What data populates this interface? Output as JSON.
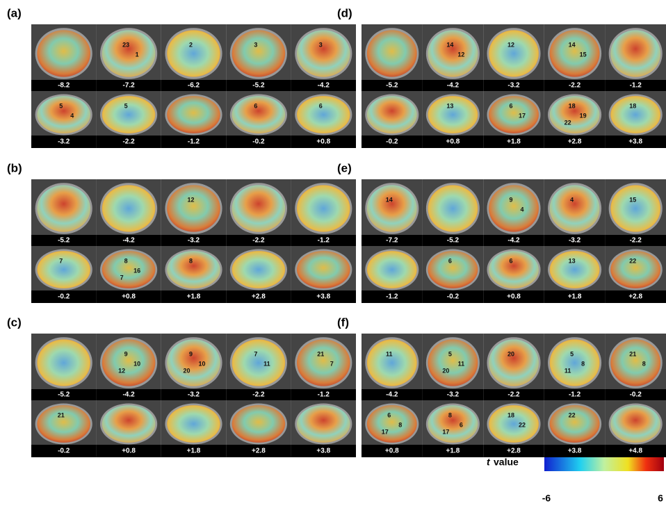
{
  "panels": [
    {
      "label": "(a)",
      "rows": [
        {
          "slices": [
            {
              "label": "-8.2",
              "regions": []
            },
            {
              "label": "-7.2",
              "regions": [
                "23",
                "1"
              ]
            },
            {
              "label": "-6.2",
              "regions": [
                "2"
              ]
            },
            {
              "label": "-5.2",
              "regions": [
                "3"
              ]
            },
            {
              "label": "-4.2",
              "regions": [
                "3"
              ]
            }
          ]
        },
        {
          "slices": [
            {
              "label": "-3.2",
              "regions": [
                "5",
                "4"
              ]
            },
            {
              "label": "-2.2",
              "regions": [
                "5"
              ]
            },
            {
              "label": "-1.2",
              "regions": []
            },
            {
              "label": "-0.2",
              "regions": [
                "6"
              ]
            },
            {
              "label": "+0.8",
              "regions": [
                "6"
              ]
            }
          ]
        }
      ]
    },
    {
      "label": "(b)",
      "rows": [
        {
          "slices": [
            {
              "label": "-5.2",
              "regions": []
            },
            {
              "label": "-4.2",
              "regions": []
            },
            {
              "label": "-3.2",
              "regions": [
                "12"
              ]
            },
            {
              "label": "-2.2",
              "regions": []
            },
            {
              "label": "-1.2",
              "regions": []
            }
          ]
        },
        {
          "slices": [
            {
              "label": "-0.2",
              "regions": [
                "7"
              ]
            },
            {
              "label": "+0.8",
              "regions": [
                "8",
                "16",
                "7"
              ]
            },
            {
              "label": "+1.8",
              "regions": [
                "8"
              ]
            },
            {
              "label": "+2.8",
              "regions": []
            },
            {
              "label": "+3.8",
              "regions": []
            }
          ]
        }
      ]
    },
    {
      "label": "(c)",
      "rows": [
        {
          "slices": [
            {
              "label": "-5.2",
              "regions": []
            },
            {
              "label": "-4.2",
              "regions": [
                "9",
                "10",
                "12"
              ]
            },
            {
              "label": "-3.2",
              "regions": [
                "9",
                "10",
                "20"
              ]
            },
            {
              "label": "-2.2",
              "regions": [
                "7",
                "11"
              ]
            },
            {
              "label": "-1.2",
              "regions": [
                "21",
                "7"
              ]
            }
          ]
        },
        {
          "slices": [
            {
              "label": "-0.2",
              "regions": [
                "21"
              ]
            },
            {
              "label": "+0.8",
              "regions": []
            },
            {
              "label": "+1.8",
              "regions": []
            },
            {
              "label": "+2.8",
              "regions": []
            },
            {
              "label": "+3.8",
              "regions": []
            }
          ]
        }
      ]
    },
    {
      "label": "(d)",
      "rows": [
        {
          "slices": [
            {
              "label": "-5.2",
              "regions": []
            },
            {
              "label": "-4.2",
              "regions": [
                "14",
                "12"
              ]
            },
            {
              "label": "-3.2",
              "regions": [
                "12"
              ]
            },
            {
              "label": "-2.2",
              "regions": [
                "14",
                "15"
              ]
            },
            {
              "label": "-1.2",
              "regions": []
            }
          ]
        },
        {
          "slices": [
            {
              "label": "-0.2",
              "regions": []
            },
            {
              "label": "+0.8",
              "regions": [
                "13"
              ]
            },
            {
              "label": "+1.8",
              "regions": [
                "6",
                "17"
              ]
            },
            {
              "label": "+2.8",
              "regions": [
                "18",
                "19",
                "22"
              ]
            },
            {
              "label": "+3.8",
              "regions": [
                "18"
              ]
            }
          ]
        }
      ]
    },
    {
      "label": "(e)",
      "rows": [
        {
          "slices": [
            {
              "label": "-7.2",
              "regions": [
                "14"
              ]
            },
            {
              "label": "-5.2",
              "regions": []
            },
            {
              "label": "-4.2",
              "regions": [
                "9",
                "4"
              ]
            },
            {
              "label": "-3.2",
              "regions": [
                "4"
              ]
            },
            {
              "label": "-2.2",
              "regions": [
                "15"
              ]
            }
          ]
        },
        {
          "slices": [
            {
              "label": "-1.2",
              "regions": []
            },
            {
              "label": "-0.2",
              "regions": [
                "6"
              ]
            },
            {
              "label": "+0.8",
              "regions": [
                "6"
              ]
            },
            {
              "label": "+1.8",
              "regions": [
                "13"
              ]
            },
            {
              "label": "+2.8",
              "regions": [
                "22"
              ]
            }
          ]
        }
      ]
    },
    {
      "label": "(f)",
      "rows": [
        {
          "slices": [
            {
              "label": "-4.2",
              "regions": [
                "11"
              ]
            },
            {
              "label": "-3.2",
              "regions": [
                "5",
                "11",
                "20"
              ]
            },
            {
              "label": "-2.2",
              "regions": [
                "20"
              ]
            },
            {
              "label": "-1.2",
              "regions": [
                "5",
                "8",
                "11"
              ]
            },
            {
              "label": "-0.2",
              "regions": [
                "21",
                "8"
              ]
            }
          ]
        },
        {
          "slices": [
            {
              "label": "+0.8",
              "regions": [
                "6",
                "8",
                "17"
              ]
            },
            {
              "label": "+1.8",
              "regions": [
                "8",
                "6",
                "17"
              ]
            },
            {
              "label": "+2.8",
              "regions": [
                "18",
                "22"
              ]
            },
            {
              "label": "+3.8",
              "regions": [
                "22"
              ]
            },
            {
              "label": "+4.8",
              "regions": []
            }
          ]
        }
      ]
    }
  ],
  "colorbar": {
    "symbol": "t",
    "label": "value",
    "min": "-6",
    "max": "6"
  }
}
